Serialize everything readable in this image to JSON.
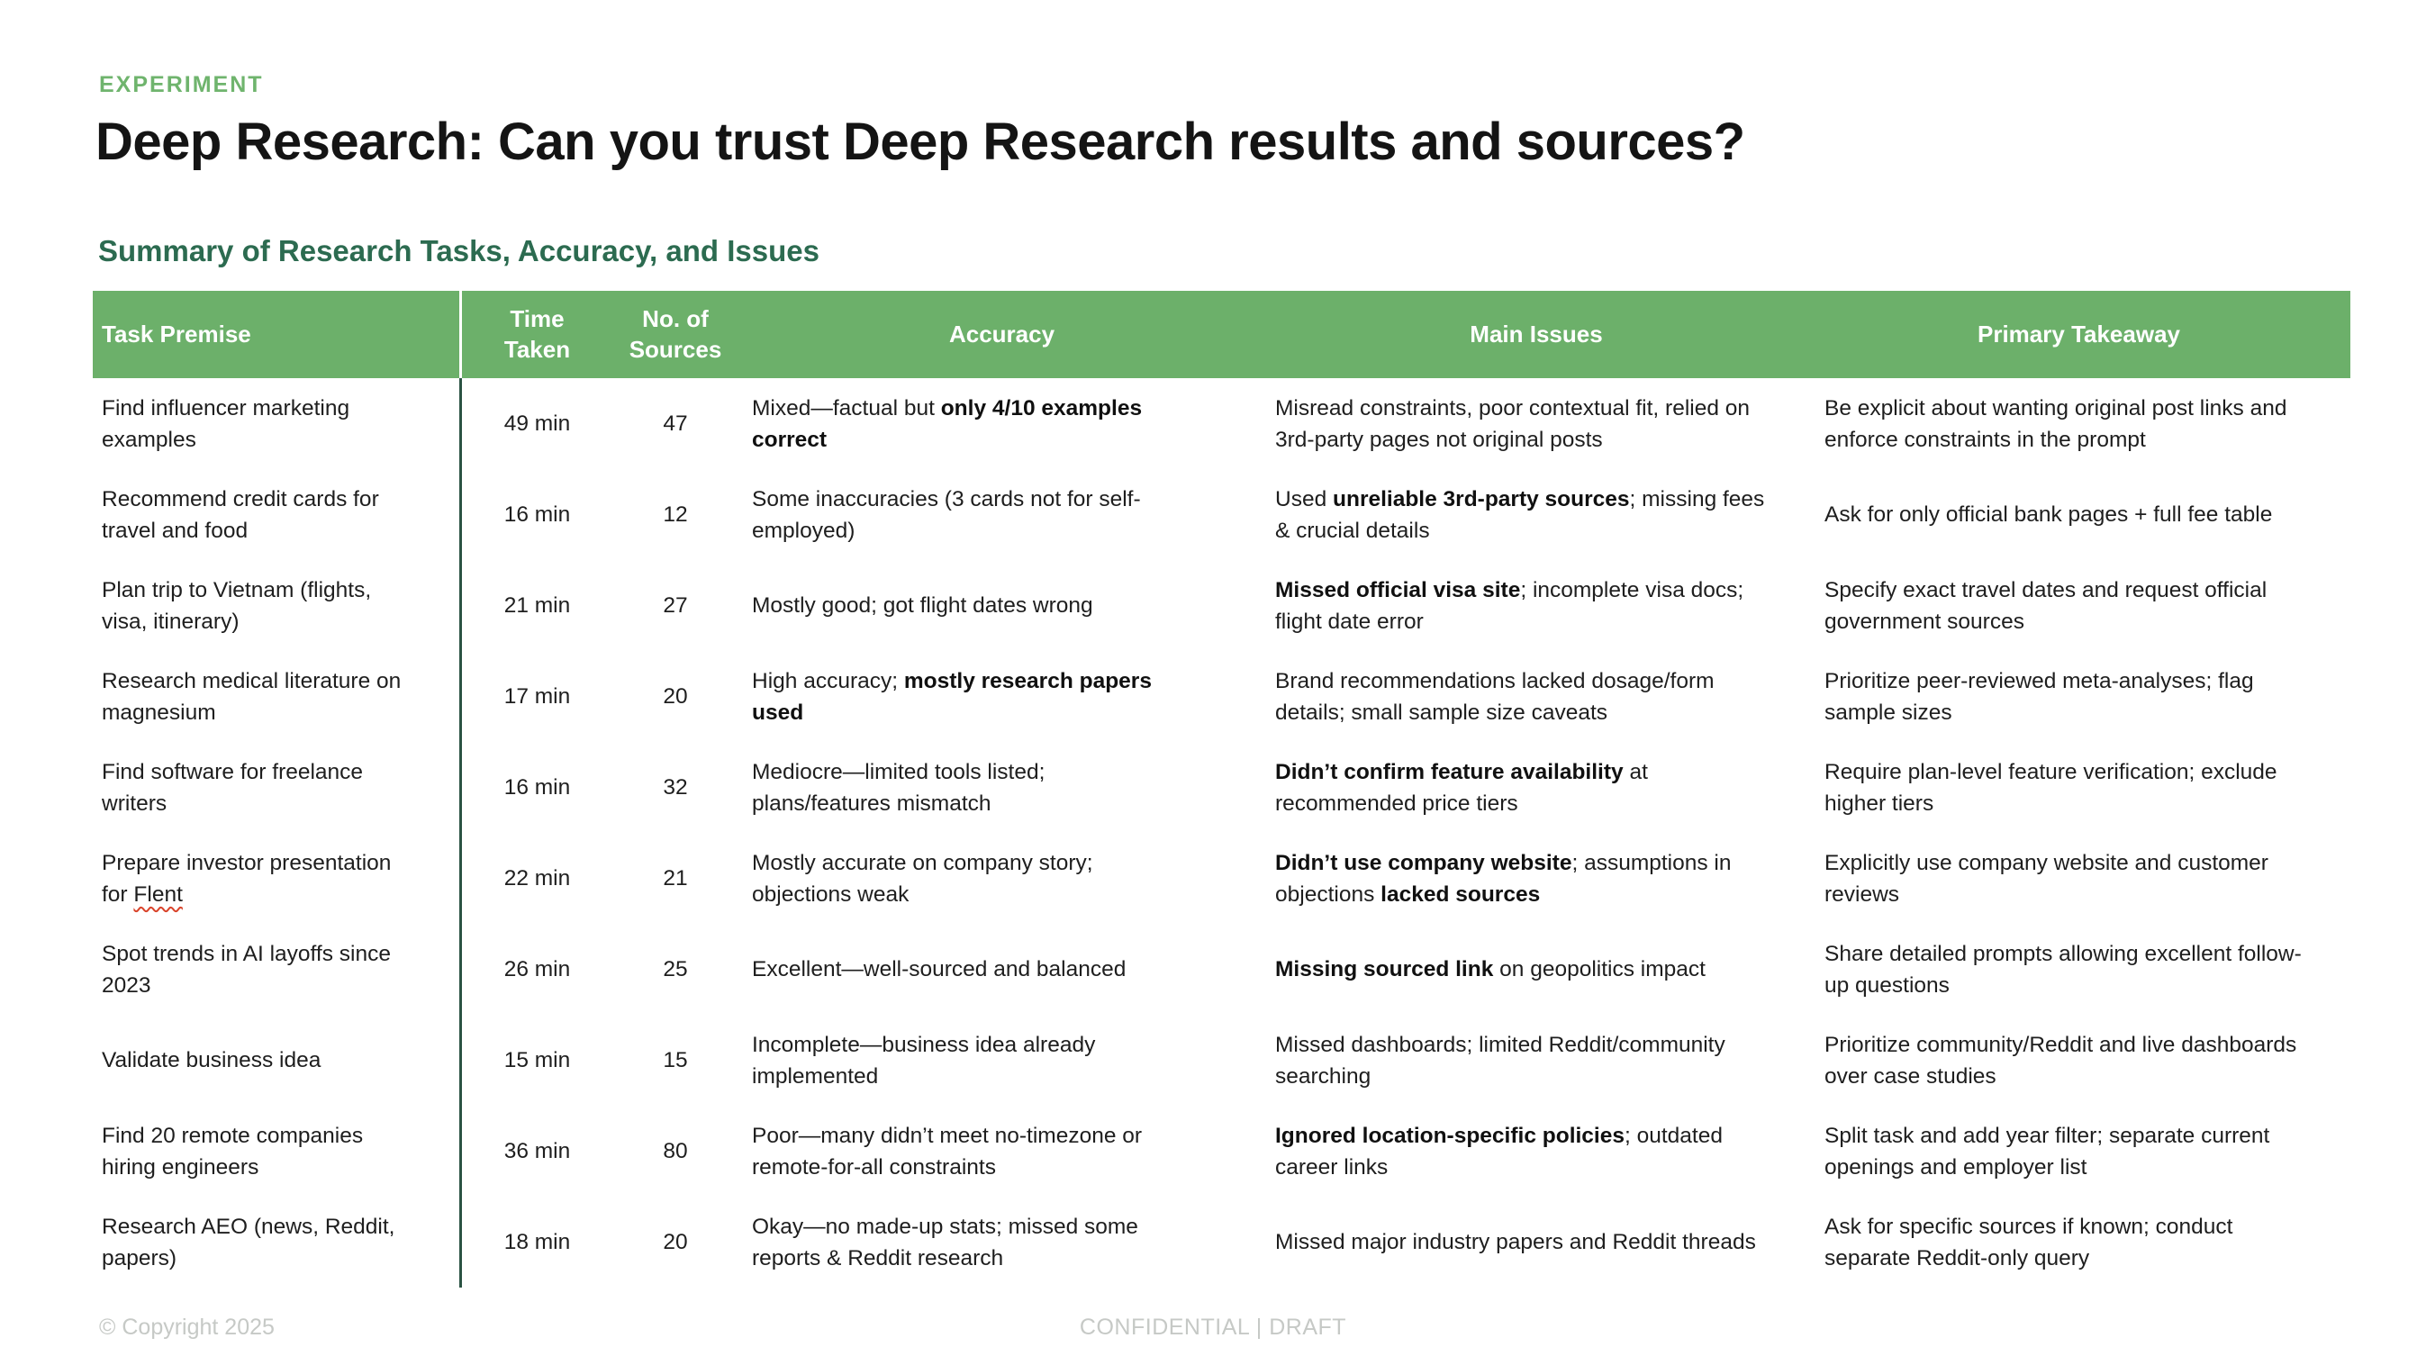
{
  "colors": {
    "accent_green": "#6cb06a",
    "eyebrow_green": "#6fb46d",
    "heading_green": "#2c6b50",
    "divider_green": "#2b5343",
    "footer_gray": "#c6c9c6",
    "squiggle_red": "#d9442b"
  },
  "header": {
    "eyebrow": "EXPERIMENT",
    "title": "Deep Research: Can you trust Deep Research results and sources?"
  },
  "table": {
    "caption": "Summary of Research Tasks, Accuracy, and Issues",
    "columns": [
      {
        "id": "premise",
        "label": "Task Premise"
      },
      {
        "id": "time",
        "label": "Time Taken"
      },
      {
        "id": "sources",
        "label": "No. of Sources"
      },
      {
        "id": "accuracy",
        "label": "Accuracy"
      },
      {
        "id": "issues",
        "label": "Main Issues"
      },
      {
        "id": "takeaway",
        "label": "Primary Takeaway"
      }
    ],
    "rows": [
      {
        "premise": [
          "Find influencer marketing examples"
        ],
        "time": "49 min",
        "sources": "47",
        "accuracy": [
          "Mixed—factual but ",
          {
            "b": "only 4/10 examples correct"
          }
        ],
        "issues": [
          "Misread constraints, poor contextual fit, relied on 3rd-party pages not original posts"
        ],
        "takeaway": [
          "Be explicit about wanting original post links and enforce constraints in the prompt"
        ]
      },
      {
        "premise": [
          "Recommend credit cards for travel and food"
        ],
        "time": "16 min",
        "sources": "12",
        "accuracy": [
          "Some inaccuracies (3 cards not for self-employed)"
        ],
        "issues": [
          "Used ",
          {
            "b": "unreliable 3rd-party sources"
          },
          "; missing fees & crucial details"
        ],
        "takeaway": [
          "Ask for only official bank pages + full fee table"
        ]
      },
      {
        "premise": [
          "Plan trip to Vietnam (flights, visa, itinerary)"
        ],
        "time": "21 min",
        "sources": "27",
        "accuracy": [
          "Mostly good; got flight dates wrong"
        ],
        "issues": [
          {
            "b": "Missed official visa site"
          },
          "; incomplete visa docs; flight date error"
        ],
        "takeaway": [
          "Specify exact travel dates and request official government sources"
        ]
      },
      {
        "premise": [
          "Research medical literature on magnesium"
        ],
        "time": "17 min",
        "sources": "20",
        "accuracy": [
          "High accuracy; ",
          {
            "b": "mostly research papers used"
          }
        ],
        "issues": [
          "Brand recommendations lacked dosage/form details; small sample size caveats"
        ],
        "takeaway": [
          "Prioritize peer-reviewed meta-analyses; flag sample sizes"
        ]
      },
      {
        "premise": [
          "Find software for freelance writers"
        ],
        "time": "16 min",
        "sources": "32",
        "accuracy": [
          "Mediocre—limited tools listed; plans/features mismatch"
        ],
        "issues": [
          {
            "b": "Didn’t confirm feature availability"
          },
          " at recommended price tiers"
        ],
        "takeaway": [
          "Require plan-level feature verification; exclude higher tiers"
        ]
      },
      {
        "premise": [
          "Prepare investor presentation for ",
          {
            "u": "Flent"
          }
        ],
        "time": "22 min",
        "sources": "21",
        "accuracy": [
          "Mostly accurate on company story; objections weak"
        ],
        "issues": [
          {
            "b": "Didn’t use company website"
          },
          "; assumptions in objections ",
          {
            "b": "lacked sources"
          }
        ],
        "takeaway": [
          "Explicitly use company website and customer reviews"
        ]
      },
      {
        "premise": [
          "Spot trends in AI layoffs since 2023"
        ],
        "time": "26 min",
        "sources": "25",
        "accuracy": [
          "Excellent—well-sourced and balanced"
        ],
        "issues": [
          {
            "b": "Missing sourced link"
          },
          " on geopolitics impact"
        ],
        "takeaway": [
          "Share detailed prompts allowing excellent follow-up questions"
        ]
      },
      {
        "premise": [
          "Validate business idea"
        ],
        "time": "15 min",
        "sources": "15",
        "accuracy": [
          "Incomplete—business idea already implemented"
        ],
        "issues": [
          "Missed dashboards; limited Reddit/community searching"
        ],
        "takeaway": [
          "Prioritize community/Reddit and live dashboards over case studies"
        ]
      },
      {
        "premise": [
          "Find 20 remote companies hiring engineers"
        ],
        "time": "36 min",
        "sources": "80",
        "accuracy": [
          "Poor—many didn’t meet no-timezone or remote-for-all constraints"
        ],
        "issues": [
          {
            "b": "Ignored location-specific policies"
          },
          "; outdated career links"
        ],
        "takeaway": [
          "Split task and add year filter; separate current openings and employer list"
        ]
      },
      {
        "premise": [
          "Research AEO (news, Reddit, papers)"
        ],
        "time": "18 min",
        "sources": "20",
        "accuracy": [
          "Okay—no made-up stats; missed some reports & Reddit research"
        ],
        "issues": [
          "Missed major industry papers and Reddit threads"
        ],
        "takeaway": [
          "Ask for specific sources if known; conduct separate Reddit-only query"
        ]
      }
    ]
  },
  "footer": {
    "copyright": "© Copyright 2025",
    "confidential": "CONFIDENTIAL | DRAFT"
  }
}
